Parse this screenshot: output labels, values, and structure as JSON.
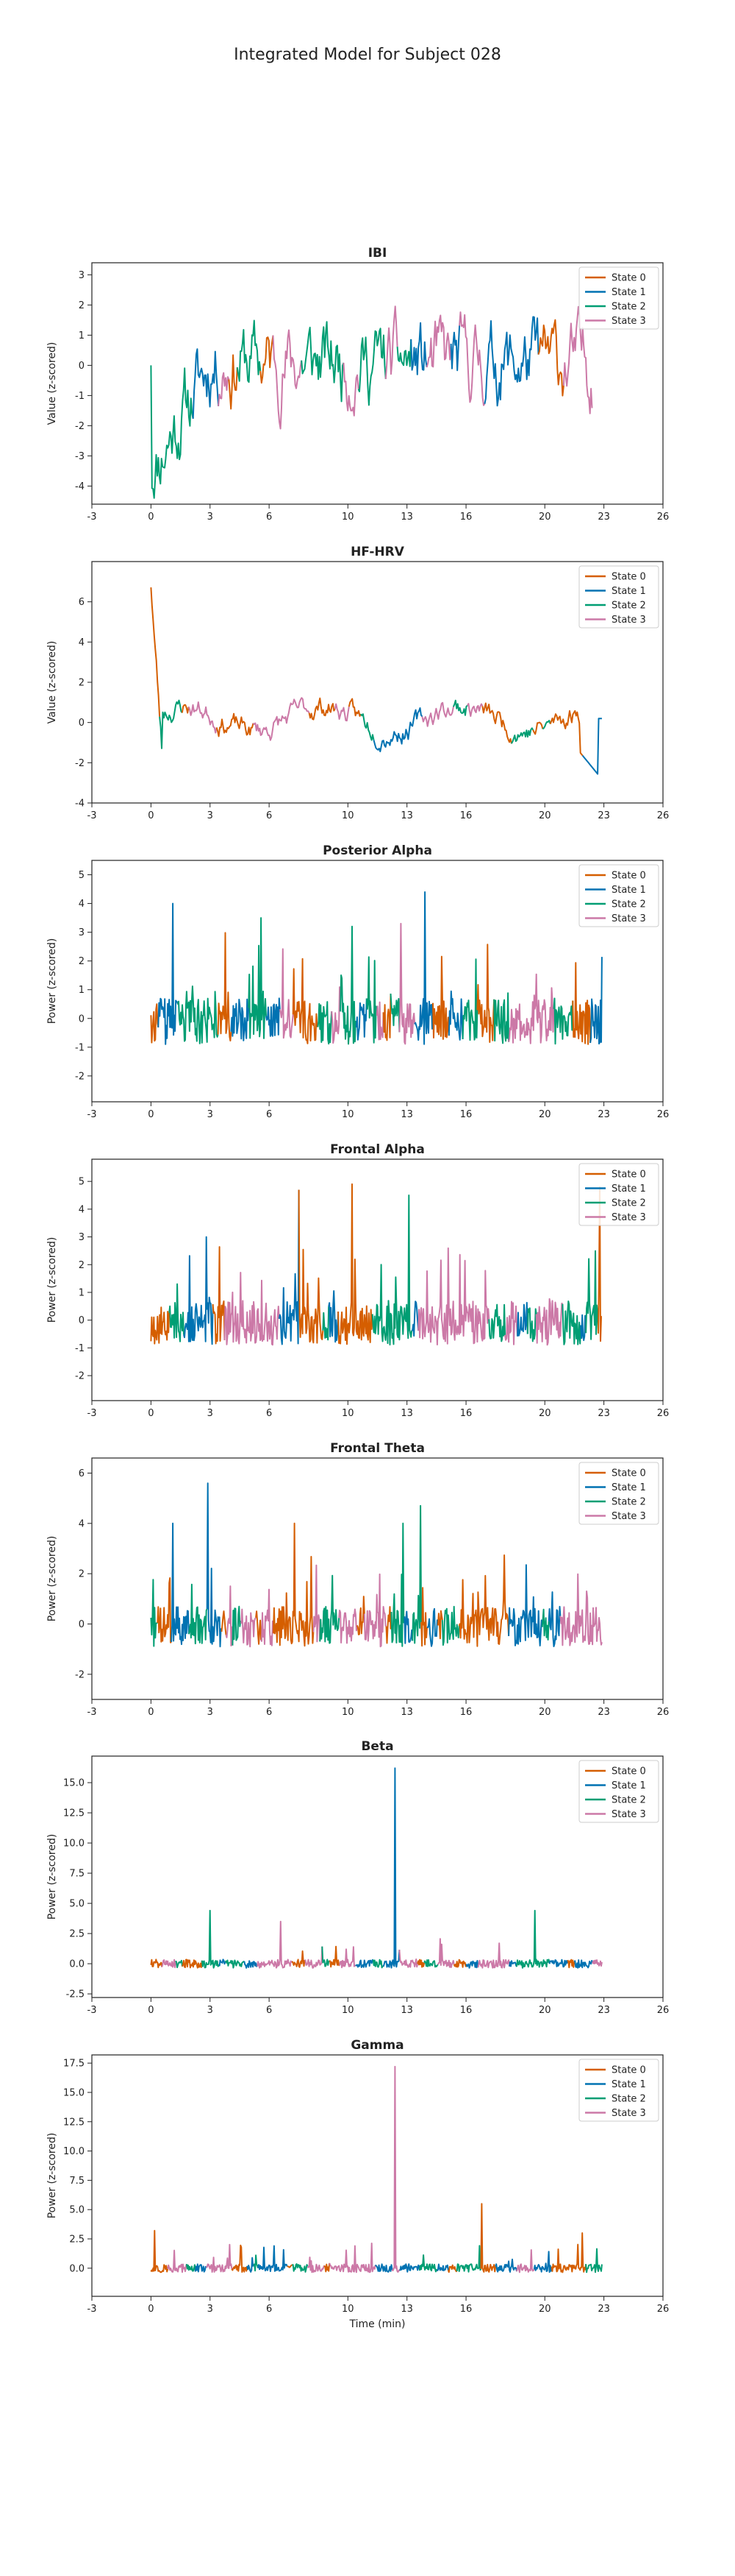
{
  "figure_title": "Integrated Model for Subject 028",
  "state_colors": {
    "State 0": "#d55e00",
    "State 1": "#0072b2",
    "State 2": "#009e73",
    "State 3": "#cc79a7"
  },
  "chart_data": [
    {
      "type": "line",
      "title": "IBI",
      "xlabel": "",
      "ylabel": "Value (z-scored)",
      "xlim": [
        -3,
        26
      ],
      "ylim": [
        -4.6,
        3.4
      ],
      "xticks": [
        "-3",
        "0",
        "3",
        "6",
        "10",
        "13",
        "16",
        "20",
        "23",
        "26"
      ],
      "yticks": [
        "-4",
        "-3",
        "-2",
        "-1",
        "0",
        "1",
        "2",
        "3"
      ],
      "legend": [
        "State 0",
        "State 1",
        "State 2",
        "State 3"
      ],
      "legend_position": "top-right",
      "series_style": "segments colored by hidden state",
      "t_end": 22.4,
      "seed": 11,
      "samples": 420,
      "pattern": "ibi",
      "spikes": []
    },
    {
      "type": "line",
      "title": "HF-HRV",
      "xlabel": "",
      "ylabel": "Value (z-scored)",
      "xlim": [
        -3,
        26
      ],
      "ylim": [
        -4,
        8
      ],
      "xticks": [
        "-3",
        "0",
        "3",
        "6",
        "10",
        "13",
        "16",
        "20",
        "23",
        "26"
      ],
      "yticks": [
        "-4",
        "-2",
        "0",
        "2",
        "4",
        "6"
      ],
      "legend": [
        "State 0",
        "State 1",
        "State 2",
        "State 3"
      ],
      "legend_position": "top-right",
      "series_style": "segments colored by hidden state",
      "t_end": 22.9,
      "seed": 23,
      "samples": 420,
      "pattern": "hrv",
      "spikes": []
    },
    {
      "type": "line",
      "title": "Posterior Alpha",
      "xlabel": "",
      "ylabel": "Power (z-scored)",
      "xlim": [
        -3,
        26
      ],
      "ylim": [
        -2.9,
        5.5
      ],
      "xticks": [
        "-3",
        "0",
        "3",
        "6",
        "10",
        "13",
        "16",
        "20",
        "23",
        "26"
      ],
      "yticks": [
        "-2",
        "-1",
        "0",
        "1",
        "2",
        "3",
        "4",
        "5"
      ],
      "legend": [
        "State 0",
        "State 1",
        "State 2",
        "State 3"
      ],
      "legend_position": "top-right",
      "series_style": "segments colored by hidden state",
      "t_end": 22.9,
      "seed": 37,
      "samples": 620,
      "pattern": "eeg",
      "spikes": [
        [
          13.9,
          4.4
        ],
        [
          1.1,
          4.0
        ],
        [
          10.2,
          3.2
        ],
        [
          5.6,
          3.5
        ],
        [
          12.7,
          3.3
        ]
      ]
    },
    {
      "type": "line",
      "title": "Frontal Alpha",
      "xlabel": "",
      "ylabel": "Power (z-scored)",
      "xlim": [
        -3,
        26
      ],
      "ylim": [
        -2.9,
        5.8
      ],
      "xticks": [
        "-3",
        "0",
        "3",
        "6",
        "10",
        "13",
        "16",
        "20",
        "23",
        "26"
      ],
      "yticks": [
        "-2",
        "-1",
        "0",
        "1",
        "2",
        "3",
        "4",
        "5"
      ],
      "legend": [
        "State 0",
        "State 1",
        "State 2",
        "State 3"
      ],
      "legend_position": "top-right",
      "series_style": "segments colored by hidden state",
      "t_end": 22.9,
      "seed": 53,
      "samples": 620,
      "pattern": "eeg",
      "spikes": [
        [
          7.5,
          4.7
        ],
        [
          10.2,
          4.9
        ],
        [
          13.1,
          4.5
        ],
        [
          22.8,
          4.8
        ],
        [
          2.8,
          3.0
        ]
      ]
    },
    {
      "type": "line",
      "title": "Frontal Theta",
      "xlabel": "",
      "ylabel": "Power (z-scored)",
      "xlim": [
        -3,
        26
      ],
      "ylim": [
        -3,
        6.6
      ],
      "xticks": [
        "-3",
        "0",
        "3",
        "6",
        "10",
        "13",
        "16",
        "20",
        "23",
        "26"
      ],
      "yticks": [
        "-2",
        "0",
        "2",
        "4",
        "6"
      ],
      "legend": [
        "State 0",
        "State 1",
        "State 2",
        "State 3"
      ],
      "legend_position": "top-right",
      "series_style": "segments colored by hidden state",
      "t_end": 22.9,
      "seed": 71,
      "samples": 620,
      "pattern": "eeg",
      "spikes": [
        [
          2.9,
          5.6
        ],
        [
          13.7,
          4.7
        ],
        [
          1.1,
          4.0
        ],
        [
          7.3,
          4.0
        ],
        [
          12.8,
          4.0
        ]
      ]
    },
    {
      "type": "line",
      "title": "Beta",
      "xlabel": "",
      "ylabel": "Power (z-scored)",
      "xlim": [
        -3,
        26
      ],
      "ylim": [
        -2.8,
        17.2
      ],
      "xticks": [
        "-3",
        "0",
        "3",
        "6",
        "10",
        "13",
        "16",
        "20",
        "23",
        "26"
      ],
      "yticks": [
        "-2.5",
        "0.0",
        "2.5",
        "5.0",
        "7.5",
        "10.0",
        "12.5",
        "15.0"
      ],
      "legend": [
        "State 0",
        "State 1",
        "State 2",
        "State 3"
      ],
      "legend_position": "top-right",
      "series_style": "segments colored by hidden state",
      "t_end": 22.9,
      "seed": 89,
      "samples": 620,
      "pattern": "beta",
      "spikes": [
        [
          12.4,
          16.2
        ],
        [
          19.5,
          4.4
        ],
        [
          3.0,
          4.4
        ],
        [
          6.6,
          3.5
        ]
      ]
    },
    {
      "type": "line",
      "title": "Gamma",
      "xlabel": "Time (min)",
      "ylabel": "Power (z-scored)",
      "xlim": [
        -3,
        26
      ],
      "ylim": [
        -2.4,
        18.2
      ],
      "xticks": [
        "-3",
        "0",
        "3",
        "6",
        "10",
        "13",
        "16",
        "20",
        "23",
        "26"
      ],
      "yticks": [
        "0.0",
        "2.5",
        "5.0",
        "7.5",
        "10.0",
        "12.5",
        "15.0",
        "17.5"
      ],
      "legend": [
        "State 0",
        "State 1",
        "State 2",
        "State 3"
      ],
      "legend_position": "top-right",
      "series_style": "segments colored by hidden state",
      "t_end": 22.9,
      "seed": 97,
      "samples": 620,
      "pattern": "beta",
      "spikes": [
        [
          12.4,
          17.2
        ],
        [
          16.8,
          5.5
        ],
        [
          21.9,
          3.0
        ],
        [
          0.2,
          3.2
        ]
      ]
    }
  ]
}
